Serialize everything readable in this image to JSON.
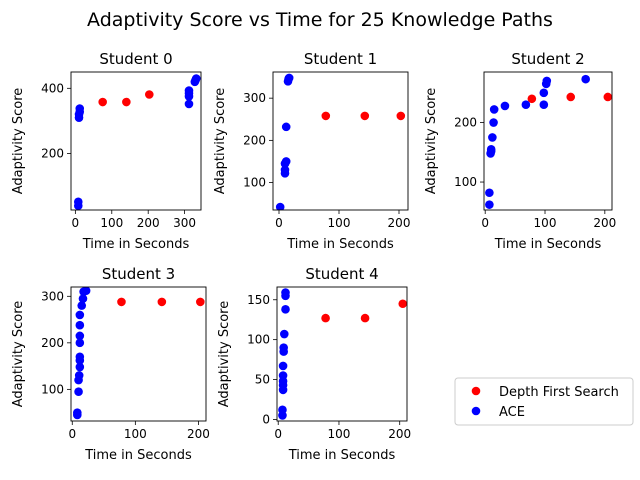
{
  "title": "Adaptivity Score vs Time for 25 Knowledge Paths",
  "legend": {
    "placement": "lower-right",
    "entries": [
      {
        "name": "Depth First Search",
        "color": "#ff0000"
      },
      {
        "name": "ACE",
        "color": "#0000ff"
      }
    ]
  },
  "chart_data": [
    {
      "type": "scatter",
      "title": "Student 0",
      "xlabel": "Time in Seconds",
      "ylabel": "Adaptivity Score",
      "xlim": [
        -12,
        345
      ],
      "ylim": [
        27,
        450
      ],
      "xticks": [
        0,
        100,
        200,
        300
      ],
      "yticks": [
        200,
        400
      ],
      "series": [
        {
          "name": "Depth First Search",
          "color": "#ff0000",
          "points": [
            [
              75,
              358
            ],
            [
              140,
              358
            ],
            [
              203,
              381
            ]
          ]
        },
        {
          "name": "ACE",
          "color": "#0000ff",
          "points": [
            [
              8,
              40
            ],
            [
              8,
              52
            ],
            [
              10,
              310
            ],
            [
              10,
              320
            ],
            [
              12,
              328
            ],
            [
              12,
              338
            ],
            [
              312,
              352
            ],
            [
              312,
              375
            ],
            [
              312,
              385
            ],
            [
              312,
              393
            ],
            [
              328,
              420
            ],
            [
              330,
              425
            ],
            [
              332,
              430
            ]
          ]
        }
      ]
    },
    {
      "type": "scatter",
      "title": "Student 1",
      "xlabel": "Time in Seconds",
      "ylabel": "Adaptivity Score",
      "xlim": [
        -10,
        215
      ],
      "ylim": [
        35,
        362
      ],
      "xticks": [
        0,
        100,
        200
      ],
      "yticks": [
        100,
        200,
        300
      ],
      "series": [
        {
          "name": "Depth First Search",
          "color": "#ff0000",
          "points": [
            [
              78,
              258
            ],
            [
              143,
              258
            ],
            [
              203,
              258
            ]
          ]
        },
        {
          "name": "ACE",
          "color": "#0000ff",
          "points": [
            [
              2,
              42
            ],
            [
              10,
              122
            ],
            [
              10,
              130
            ],
            [
              10,
              145
            ],
            [
              12,
              150
            ],
            [
              12,
              232
            ],
            [
              15,
              340
            ],
            [
              16,
              346
            ],
            [
              17,
              348
            ]
          ]
        }
      ]
    },
    {
      "type": "scatter",
      "title": "Student 2",
      "xlabel": "Time in Seconds",
      "ylabel": "Adaptivity Score",
      "xlim": [
        -2,
        212
      ],
      "ylim": [
        53,
        285
      ],
      "xticks": [
        0,
        100,
        200
      ],
      "yticks": [
        100,
        200
      ],
      "series": [
        {
          "name": "Depth First Search",
          "color": "#ff0000",
          "points": [
            [
              78,
              240
            ],
            [
              143,
              243
            ],
            [
              205,
              243
            ]
          ]
        },
        {
          "name": "ACE",
          "color": "#0000ff",
          "points": [
            [
              7,
              62
            ],
            [
              7,
              82
            ],
            [
              9,
              148
            ],
            [
              10,
              152
            ],
            [
              10,
              155
            ],
            [
              12,
              175
            ],
            [
              14,
              200
            ],
            [
              15,
              222
            ],
            [
              33,
              228
            ],
            [
              68,
              230
            ],
            [
              98,
              230
            ],
            [
              98,
              250
            ],
            [
              102,
              265
            ],
            [
              103,
              270
            ],
            [
              168,
              273
            ]
          ]
        }
      ]
    },
    {
      "type": "scatter",
      "title": "Student 3",
      "xlabel": "Time in Seconds",
      "ylabel": "Adaptivity Score",
      "xlim": [
        -2,
        212
      ],
      "ylim": [
        32,
        320
      ],
      "xticks": [
        0,
        100,
        200
      ],
      "yticks": [
        100,
        200,
        300
      ],
      "series": [
        {
          "name": "Depth First Search",
          "color": "#ff0000",
          "points": [
            [
              78,
              288
            ],
            [
              142,
              288
            ],
            [
              203,
              288
            ]
          ]
        },
        {
          "name": "ACE",
          "color": "#0000ff",
          "points": [
            [
              8,
              45
            ],
            [
              8,
              50
            ],
            [
              10,
              95
            ],
            [
              10,
              120
            ],
            [
              11,
              130
            ],
            [
              12,
              148
            ],
            [
              12,
              162
            ],
            [
              12,
              170
            ],
            [
              12,
              200
            ],
            [
              12,
              215
            ],
            [
              12,
              238
            ],
            [
              12,
              260
            ],
            [
              15,
              280
            ],
            [
              17,
              295
            ],
            [
              18,
              310
            ],
            [
              22,
              312
            ]
          ]
        }
      ]
    },
    {
      "type": "scatter",
      "title": "Student 4",
      "xlabel": "Time in Seconds",
      "ylabel": "Adaptivity Score",
      "xlim": [
        -2,
        212
      ],
      "ylim": [
        -2,
        166
      ],
      "xticks": [
        0,
        100,
        200
      ],
      "yticks": [
        0,
        50,
        100,
        150
      ],
      "series": [
        {
          "name": "Depth First Search",
          "color": "#ff0000",
          "points": [
            [
              78,
              127
            ],
            [
              143,
              127
            ],
            [
              205,
              145
            ]
          ]
        },
        {
          "name": "ACE",
          "color": "#0000ff",
          "points": [
            [
              7,
              5
            ],
            [
              7,
              12
            ],
            [
              8,
              37
            ],
            [
              8,
              43
            ],
            [
              8,
              48
            ],
            [
              8,
              55
            ],
            [
              8,
              67
            ],
            [
              9,
              85
            ],
            [
              9,
              90
            ],
            [
              10,
              107
            ],
            [
              12,
              138
            ],
            [
              12,
              155
            ],
            [
              12,
              159
            ]
          ]
        }
      ]
    }
  ]
}
